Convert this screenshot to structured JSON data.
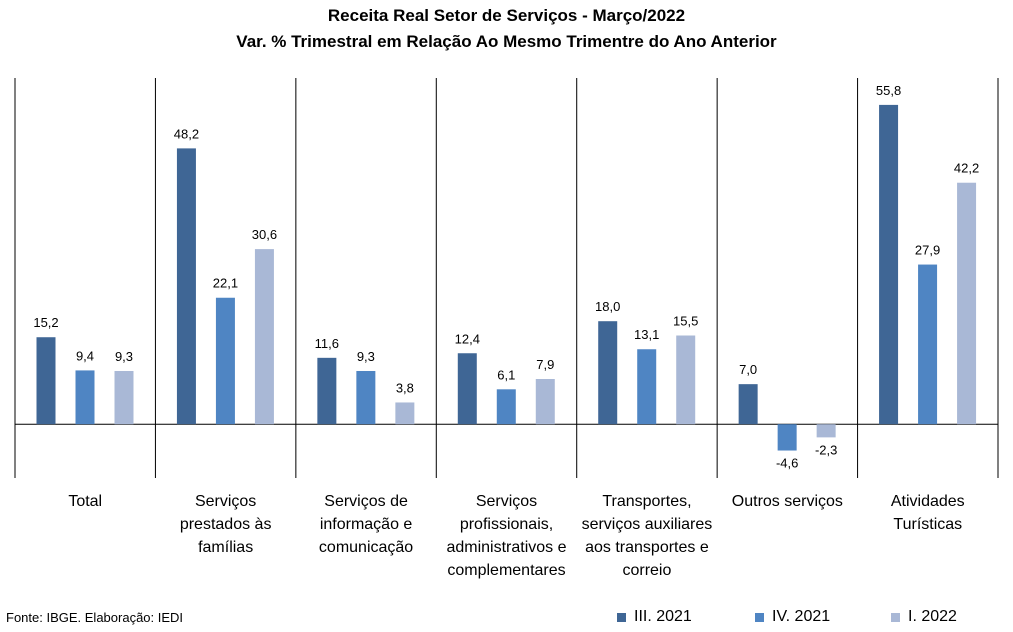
{
  "chart_data": {
    "type": "bar",
    "title": "Receita Real Setor de Serviços - Março/2022",
    "subtitle": "Var. % Trimestral em Relação Ao Mesmo Trimentre do Ano Anterior",
    "categories": [
      [
        "Total"
      ],
      [
        "Serviços",
        "prestados às",
        "famílias"
      ],
      [
        "Serviços de",
        "informação e",
        "comunicação"
      ],
      [
        "Serviços",
        "profissionais,",
        "administrativos e",
        "complementares"
      ],
      [
        "Transportes,",
        "serviços auxiliares",
        "aos transportes e",
        "correio"
      ],
      [
        "Outros serviços"
      ],
      [
        "Atividades",
        "Turísticas"
      ]
    ],
    "series": [
      {
        "name": "III. 2021",
        "color": "#3f6695",
        "values": [
          15.2,
          48.2,
          11.6,
          12.4,
          18.0,
          7.0,
          55.8
        ]
      },
      {
        "name": "IV. 2021",
        "color": "#4f85c3",
        "values": [
          9.4,
          22.1,
          9.3,
          6.1,
          13.1,
          -4.6,
          27.9
        ]
      },
      {
        "name": "I. 2022",
        "color": "#a9b8d6",
        "values": [
          9.3,
          30.6,
          3.8,
          7.9,
          15.5,
          -2.3,
          42.2
        ]
      }
    ],
    "ylim": [
      -9.4,
      60.5
    ],
    "decimal_separator": ",",
    "legend_position": "bottom-right",
    "grid": false,
    "source": "Fonte: IBGE. Elaboração: IEDI"
  }
}
